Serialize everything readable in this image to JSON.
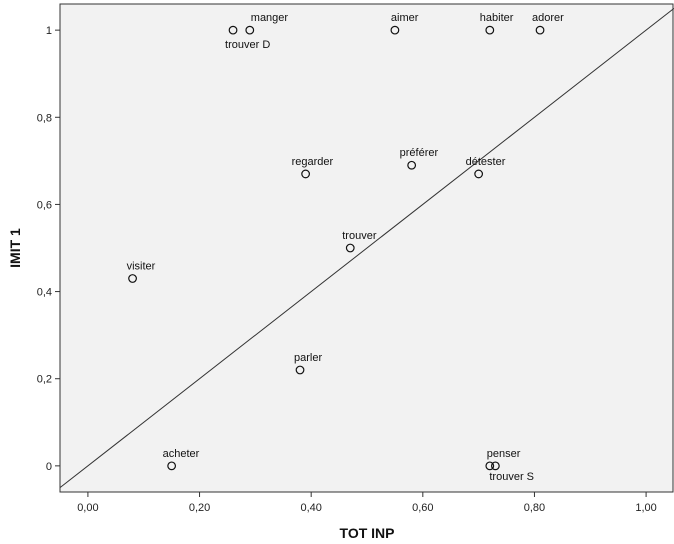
{
  "chart_data": {
    "type": "scatter",
    "xlabel": "TOT INP",
    "ylabel": "IMIT 1",
    "xlim": [
      -0.05,
      1.05
    ],
    "ylim": [
      -0.06,
      1.06
    ],
    "x_ticks": [
      0,
      0.2,
      0.4,
      0.6,
      0.8,
      1.0
    ],
    "x_tick_labels": [
      "0,00",
      "0,20",
      "0,40",
      "0,60",
      "0,80",
      "1,00"
    ],
    "y_ticks": [
      0,
      0.2,
      0.4,
      0.6,
      0.8,
      1.0
    ],
    "y_tick_labels": [
      "0",
      "0,2",
      "0,4",
      "0,6",
      "0,8",
      "1"
    ],
    "reference_line": "y = x",
    "grid": false,
    "plot_background": "#f2f2f2",
    "points": [
      {
        "label": "manger",
        "x": 0.29,
        "y": 1.0
      },
      {
        "label": "trouver D",
        "x": 0.26,
        "y": 1.0
      },
      {
        "label": "aimer",
        "x": 0.55,
        "y": 1.0
      },
      {
        "label": "habiter",
        "x": 0.72,
        "y": 1.0
      },
      {
        "label": "adorer",
        "x": 0.81,
        "y": 1.0
      },
      {
        "label": "regarder",
        "x": 0.39,
        "y": 0.67
      },
      {
        "label": "préférer",
        "x": 0.58,
        "y": 0.69
      },
      {
        "label": "détester",
        "x": 0.7,
        "y": 0.67
      },
      {
        "label": "trouver",
        "x": 0.47,
        "y": 0.5
      },
      {
        "label": "visiter",
        "x": 0.08,
        "y": 0.43
      },
      {
        "label": "parler",
        "x": 0.38,
        "y": 0.22
      },
      {
        "label": "acheter",
        "x": 0.15,
        "y": 0.0
      },
      {
        "label": "penser",
        "x": 0.72,
        "y": 0.0
      },
      {
        "label": "trouver S",
        "x": 0.73,
        "y": 0.0
      }
    ]
  }
}
